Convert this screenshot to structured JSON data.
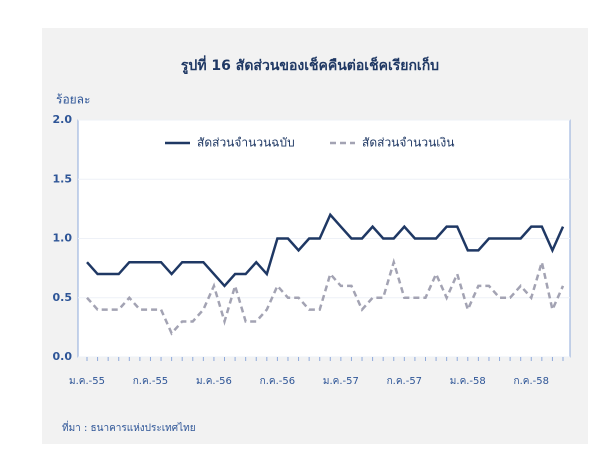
{
  "chart_data": {
    "type": "line",
    "title": "รูปที่ 16 สัดส่วนของเช็คคืนต่อเช็คเรียกเก็บ",
    "y_label": "ร้อยละ",
    "source": "ที่มา : ธนาคารแห่งประเทศไทย",
    "categories": [
      "ม.ค.-55",
      null,
      null,
      null,
      null,
      null,
      "ก.ค.-55",
      null,
      null,
      null,
      null,
      null,
      "ม.ค.-56",
      null,
      null,
      null,
      null,
      null,
      "ก.ค.-56",
      null,
      null,
      null,
      null,
      null,
      "ม.ค.-57",
      null,
      null,
      null,
      null,
      null,
      "ก.ค.-57",
      null,
      null,
      null,
      null,
      null,
      "ม.ค.-58",
      null,
      null,
      null,
      null,
      null,
      "ก.ค.-58",
      null,
      null,
      null
    ],
    "series": [
      {
        "name": "สัดส่วนจำนวนฉบับ",
        "color": "#1f3864",
        "dash": false,
        "values": [
          0.8,
          0.7,
          0.7,
          0.7,
          0.8,
          0.8,
          0.8,
          0.8,
          0.7,
          0.8,
          0.8,
          0.8,
          0.7,
          0.6,
          0.7,
          0.7,
          0.8,
          0.7,
          1.0,
          1.0,
          0.9,
          1.0,
          1.0,
          1.2,
          1.1,
          1.0,
          1.0,
          1.1,
          1.0,
          1.0,
          1.1,
          1.0,
          1.0,
          1.0,
          1.1,
          1.1,
          0.9,
          0.9,
          1.0,
          1.0,
          1.0,
          1.0,
          1.1,
          1.1,
          0.9,
          1.1
        ]
      },
      {
        "name": "สัดส่วนจำนวนเงิน",
        "color": "#a3a3b3",
        "dash": true,
        "values": [
          0.5,
          0.4,
          0.4,
          0.4,
          0.5,
          0.4,
          0.4,
          0.4,
          0.2,
          0.3,
          0.3,
          0.4,
          0.6,
          0.3,
          0.6,
          0.3,
          0.3,
          0.4,
          0.6,
          0.5,
          0.5,
          0.4,
          0.4,
          0.7,
          0.6,
          0.6,
          0.4,
          0.5,
          0.5,
          0.8,
          0.5,
          0.5,
          0.5,
          0.7,
          0.5,
          0.7,
          0.4,
          0.6,
          0.6,
          0.5,
          0.5,
          0.6,
          0.5,
          0.8,
          0.4,
          0.6
        ]
      }
    ],
    "ylim": [
      0,
      2
    ],
    "yticks": [
      {
        "value": 0,
        "label": "0.0"
      },
      0.5,
      {
        "value": 1,
        "label": "1.0"
      },
      1.5,
      {
        "value": 2,
        "label": "2.0"
      }
    ],
    "grid": true,
    "legend": "top"
  }
}
